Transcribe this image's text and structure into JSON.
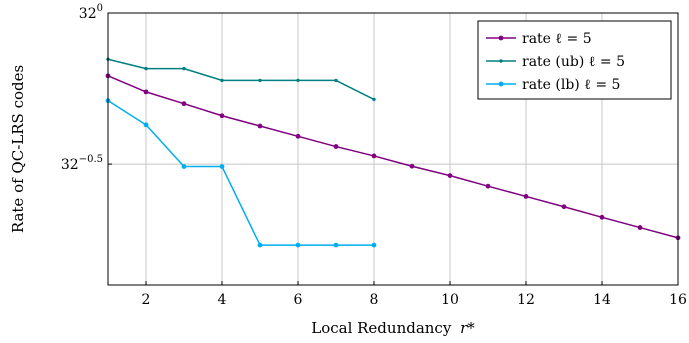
{
  "chart_data": {
    "type": "line",
    "xlabel": "Local Redundancy",
    "xlabel_symbol": "r*",
    "ylabel": "Rate of QC-LRS codes",
    "xlim": [
      1,
      16
    ],
    "ylim_exponent": [
      -0.9,
      0
    ],
    "y_scale": "log base 32",
    "y_ticks": [
      {
        "base": "32",
        "exponent": "0",
        "value": 0
      },
      {
        "base": "32",
        "exponent": "−0.5",
        "value": -0.5
      }
    ],
    "x_ticks": [
      2,
      4,
      6,
      8,
      10,
      12,
      14,
      16
    ],
    "grid": true,
    "legend_position": "top-right",
    "series": [
      {
        "name": "rate ℓ = 5",
        "color": "#800080",
        "marker": "circle",
        "x": [
          1,
          2,
          3,
          4,
          5,
          6,
          7,
          8,
          9,
          10,
          11,
          12,
          13,
          14,
          15,
          16
        ],
        "y_exponent": [
          -0.208,
          -0.261,
          -0.3,
          -0.34,
          -0.374,
          -0.408,
          -0.442,
          -0.473,
          -0.507,
          -0.538,
          -0.573,
          -0.607,
          -0.641,
          -0.676,
          -0.71,
          -0.744
        ]
      },
      {
        "name": "rate (ub) ℓ = 5",
        "color": "#008080",
        "marker": "dot",
        "x": [
          1,
          2,
          3,
          4,
          5,
          6,
          7,
          8
        ],
        "y_exponent": [
          -0.153,
          -0.184,
          -0.184,
          -0.223,
          -0.223,
          -0.223,
          -0.223,
          -0.286
        ]
      },
      {
        "name": "rate (lb) ℓ = 5",
        "color": "#00aeef",
        "marker": "circle",
        "x": [
          1,
          2,
          3,
          4,
          5,
          6,
          7,
          8
        ],
        "y_exponent": [
          -0.29,
          -0.37,
          -0.508,
          -0.508,
          -0.768,
          -0.768,
          -0.768,
          -0.768
        ]
      }
    ]
  }
}
